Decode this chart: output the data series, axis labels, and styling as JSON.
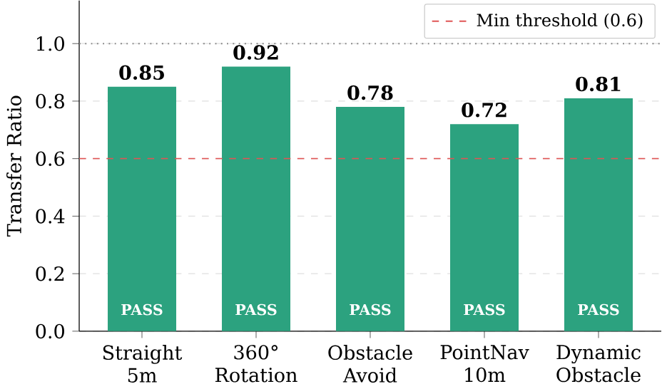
{
  "chart_data": {
    "type": "bar",
    "ylabel": "Transfer Ratio",
    "categories": [
      "Straight 5m",
      "360° Rotation",
      "Obstacle Avoid",
      "PointNav 10m",
      "Dynamic Obstacle"
    ],
    "values": [
      0.85,
      0.92,
      0.78,
      0.72,
      0.81
    ],
    "color": "#2ca27f",
    "data_labels": true,
    "ylim": [
      0,
      1.15
    ],
    "yticks": [
      {
        "value": 0,
        "label": "0.0"
      },
      {
        "value": 0.2,
        "label": "0.2"
      },
      {
        "value": 0.4,
        "label": "0.4"
      },
      {
        "value": 0.6,
        "label": "0.6"
      },
      {
        "value": 0.8,
        "label": "0.8"
      },
      {
        "value": 1.0,
        "label": "1.0"
      }
    ],
    "grid": "y",
    "legend": "top right",
    "ref_lines": [
      {
        "axis": "y",
        "value": 0.6,
        "label": "Min threshold (0.6)",
        "color": "#e05555",
        "line_style": "dashed"
      },
      {
        "axis": "y",
        "value": 1.0,
        "color": "#888888",
        "line_style": "dotted"
      }
    ],
    "annotations": [
      "PASS",
      "PASS",
      "PASS",
      "PASS",
      "PASS"
    ]
  }
}
